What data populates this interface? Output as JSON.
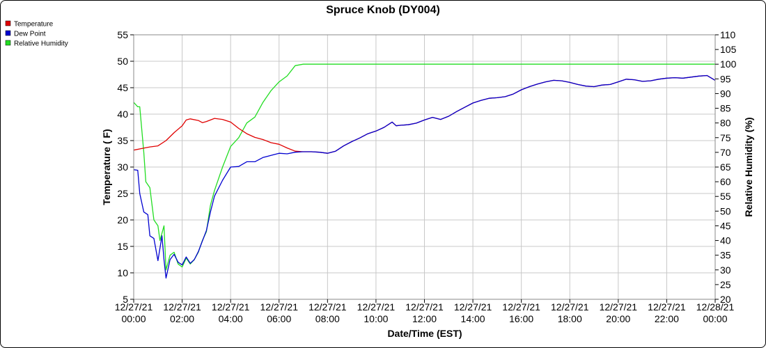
{
  "chart_data": {
    "type": "line",
    "title": "Spruce Knob (DY004)",
    "xlabel": "Date/Time (EST)",
    "ylabel": "Temperature ( F)",
    "y2label": "Relative Humidity (%)",
    "x_range": [
      "12/27/21 00:00",
      "12/28/21 00:00"
    ],
    "ylim": [
      5,
      55
    ],
    "y2lim": [
      20,
      110
    ],
    "grid": true,
    "legend_position": "top-left",
    "x_ticks": [
      {
        "date": "12/27/21",
        "time": "00:00"
      },
      {
        "date": "12/27/21",
        "time": "02:00"
      },
      {
        "date": "12/27/21",
        "time": "04:00"
      },
      {
        "date": "12/27/21",
        "time": "06:00"
      },
      {
        "date": "12/27/21",
        "time": "08:00"
      },
      {
        "date": "12/27/21",
        "time": "10:00"
      },
      {
        "date": "12/27/21",
        "time": "12:00"
      },
      {
        "date": "12/27/21",
        "time": "14:00"
      },
      {
        "date": "12/27/21",
        "time": "16:00"
      },
      {
        "date": "12/27/21",
        "time": "18:00"
      },
      {
        "date": "12/27/21",
        "time": "20:00"
      },
      {
        "date": "12/27/21",
        "time": "22:00"
      },
      {
        "date": "12/28/21",
        "time": "00:00"
      }
    ],
    "y_ticks": [
      "5",
      "10",
      "15",
      "20",
      "25",
      "30",
      "35",
      "40",
      "45",
      "50",
      "55"
    ],
    "y2_ticks": [
      "20",
      "25",
      "30",
      "35",
      "40",
      "45",
      "50",
      "55",
      "60",
      "65",
      "70",
      "75",
      "80",
      "85",
      "90",
      "95",
      "100",
      "105",
      "110"
    ],
    "series": [
      {
        "name": "Temperature",
        "axis": "left",
        "color": "#e00000",
        "points": [
          [
            "12/27/21 00:00",
            33.2
          ],
          [
            "12/27/21 00:20",
            33.5
          ],
          [
            "12/27/21 00:40",
            33.8
          ],
          [
            "12/27/21 01:00",
            34.0
          ],
          [
            "12/27/21 01:20",
            35.0
          ],
          [
            "12/27/21 01:40",
            36.5
          ],
          [
            "12/27/21 02:00",
            37.8
          ],
          [
            "12/27/21 02:10",
            38.9
          ],
          [
            "12/27/21 02:20",
            39.1
          ],
          [
            "12/27/21 02:40",
            38.8
          ],
          [
            "12/27/21 02:50",
            38.4
          ],
          [
            "12/27/21 03:00",
            38.6
          ],
          [
            "12/27/21 03:20",
            39.2
          ],
          [
            "12/27/21 03:40",
            39.0
          ],
          [
            "12/27/21 04:00",
            38.5
          ],
          [
            "12/27/21 04:20",
            37.3
          ],
          [
            "12/27/21 04:40",
            36.3
          ],
          [
            "12/27/21 05:00",
            35.6
          ],
          [
            "12/27/21 05:20",
            35.2
          ],
          [
            "12/27/21 05:40",
            34.6
          ],
          [
            "12/27/21 06:00",
            34.3
          ],
          [
            "12/27/21 06:20",
            33.6
          ],
          [
            "12/27/21 06:40",
            33.0
          ],
          [
            "12/27/21 07:00",
            32.9
          ],
          [
            "12/27/21 07:20",
            32.9
          ],
          [
            "12/27/21 07:40",
            32.8
          ],
          [
            "12/27/21 08:00",
            32.6
          ],
          [
            "12/27/21 08:20",
            33.0
          ],
          [
            "12/27/21 08:40",
            34.0
          ],
          [
            "12/27/21 09:00",
            34.8
          ],
          [
            "12/27/21 09:20",
            35.5
          ],
          [
            "12/27/21 09:40",
            36.3
          ],
          [
            "12/27/21 10:00",
            36.8
          ],
          [
            "12/27/21 10:20",
            37.5
          ],
          [
            "12/27/21 10:40",
            38.5
          ],
          [
            "12/27/21 10:50",
            37.8
          ],
          [
            "12/27/21 11:00",
            37.9
          ],
          [
            "12/27/21 11:20",
            38.0
          ],
          [
            "12/27/21 11:40",
            38.3
          ],
          [
            "12/27/21 12:00",
            38.9
          ],
          [
            "12/27/21 12:20",
            39.4
          ],
          [
            "12/27/21 12:40",
            39.0
          ],
          [
            "12/27/21 13:00",
            39.6
          ],
          [
            "12/27/21 13:20",
            40.5
          ],
          [
            "12/27/21 13:40",
            41.3
          ],
          [
            "12/27/21 14:00",
            42.1
          ],
          [
            "12/27/21 14:20",
            42.6
          ],
          [
            "12/27/21 14:40",
            43.0
          ],
          [
            "12/27/21 15:00",
            43.1
          ],
          [
            "12/27/21 15:20",
            43.3
          ],
          [
            "12/27/21 15:40",
            43.8
          ],
          [
            "12/27/21 16:00",
            44.6
          ],
          [
            "12/27/21 16:20",
            45.2
          ],
          [
            "12/27/21 16:40",
            45.7
          ],
          [
            "12/27/21 17:00",
            46.1
          ],
          [
            "12/27/21 17:20",
            46.4
          ],
          [
            "12/27/21 17:40",
            46.3
          ],
          [
            "12/27/21 18:00",
            46.0
          ],
          [
            "12/27/21 18:20",
            45.6
          ],
          [
            "12/27/21 18:40",
            45.3
          ],
          [
            "12/27/21 19:00",
            45.2
          ],
          [
            "12/27/21 19:20",
            45.5
          ],
          [
            "12/27/21 19:40",
            45.6
          ],
          [
            "12/27/21 20:00",
            46.1
          ],
          [
            "12/27/21 20:20",
            46.6
          ],
          [
            "12/27/21 20:40",
            46.5
          ],
          [
            "12/27/21 21:00",
            46.2
          ],
          [
            "12/27/21 21:20",
            46.3
          ],
          [
            "12/27/21 21:40",
            46.6
          ],
          [
            "12/27/21 22:00",
            46.8
          ],
          [
            "12/27/21 22:20",
            46.9
          ],
          [
            "12/27/21 22:40",
            46.8
          ],
          [
            "12/27/21 23:00",
            47.0
          ],
          [
            "12/27/21 23:20",
            47.2
          ],
          [
            "12/27/21 23:40",
            47.3
          ],
          [
            "12/28/21 00:00",
            46.4
          ]
        ]
      },
      {
        "name": "Dew Point",
        "axis": "left",
        "color": "#0000d0",
        "points": [
          [
            "12/27/21 00:00",
            29.5
          ],
          [
            "12/27/21 00:10",
            29.4
          ],
          [
            "12/27/21 00:15",
            25.0
          ],
          [
            "12/27/21 00:25",
            21.5
          ],
          [
            "12/27/21 00:35",
            21.0
          ],
          [
            "12/27/21 00:40",
            17.0
          ],
          [
            "12/27/21 00:50",
            16.5
          ],
          [
            "12/27/21 01:00",
            12.3
          ],
          [
            "12/27/21 01:10",
            17.0
          ],
          [
            "12/27/21 01:15",
            12.5
          ],
          [
            "12/27/21 01:20",
            9.0
          ],
          [
            "12/27/21 01:30",
            12.5
          ],
          [
            "12/27/21 01:40",
            13.5
          ],
          [
            "12/27/21 01:50",
            12.0
          ],
          [
            "12/27/21 02:00",
            11.5
          ],
          [
            "12/27/21 02:10",
            13.0
          ],
          [
            "12/27/21 02:20",
            11.8
          ],
          [
            "12/27/21 02:30",
            12.5
          ],
          [
            "12/27/21 02:40",
            14.0
          ],
          [
            "12/27/21 02:50",
            16.0
          ],
          [
            "12/27/21 03:00",
            18.0
          ],
          [
            "12/27/21 03:10",
            21.5
          ],
          [
            "12/27/21 03:20",
            24.5
          ],
          [
            "12/27/21 03:40",
            27.5
          ],
          [
            "12/27/21 04:00",
            30.0
          ],
          [
            "12/27/21 04:20",
            30.1
          ],
          [
            "12/27/21 04:40",
            31.0
          ],
          [
            "12/27/21 05:00",
            31.0
          ],
          [
            "12/27/21 05:20",
            31.8
          ],
          [
            "12/27/21 05:40",
            32.2
          ],
          [
            "12/27/21 06:00",
            32.6
          ],
          [
            "12/27/21 06:20",
            32.5
          ],
          [
            "12/27/21 06:40",
            32.8
          ],
          [
            "12/27/21 07:00",
            32.9
          ],
          [
            "12/27/21 07:20",
            32.9
          ],
          [
            "12/27/21 07:40",
            32.8
          ],
          [
            "12/27/21 08:00",
            32.6
          ],
          [
            "12/27/21 08:20",
            33.0
          ],
          [
            "12/27/21 08:40",
            34.0
          ],
          [
            "12/27/21 09:00",
            34.8
          ],
          [
            "12/27/21 09:20",
            35.5
          ],
          [
            "12/27/21 09:40",
            36.3
          ],
          [
            "12/27/21 10:00",
            36.8
          ],
          [
            "12/27/21 10:20",
            37.5
          ],
          [
            "12/27/21 10:40",
            38.5
          ],
          [
            "12/27/21 10:50",
            37.8
          ],
          [
            "12/27/21 11:00",
            37.9
          ],
          [
            "12/27/21 11:20",
            38.0
          ],
          [
            "12/27/21 11:40",
            38.3
          ],
          [
            "12/27/21 12:00",
            38.9
          ],
          [
            "12/27/21 12:20",
            39.4
          ],
          [
            "12/27/21 12:40",
            39.0
          ],
          [
            "12/27/21 13:00",
            39.6
          ],
          [
            "12/27/21 13:20",
            40.5
          ],
          [
            "12/27/21 13:40",
            41.3
          ],
          [
            "12/27/21 14:00",
            42.1
          ],
          [
            "12/27/21 14:20",
            42.6
          ],
          [
            "12/27/21 14:40",
            43.0
          ],
          [
            "12/27/21 15:00",
            43.1
          ],
          [
            "12/27/21 15:20",
            43.3
          ],
          [
            "12/27/21 15:40",
            43.8
          ],
          [
            "12/27/21 16:00",
            44.6
          ],
          [
            "12/27/21 16:20",
            45.2
          ],
          [
            "12/27/21 16:40",
            45.7
          ],
          [
            "12/27/21 17:00",
            46.1
          ],
          [
            "12/27/21 17:20",
            46.4
          ],
          [
            "12/27/21 17:40",
            46.3
          ],
          [
            "12/27/21 18:00",
            46.0
          ],
          [
            "12/27/21 18:20",
            45.6
          ],
          [
            "12/27/21 18:40",
            45.3
          ],
          [
            "12/27/21 19:00",
            45.2
          ],
          [
            "12/27/21 19:20",
            45.5
          ],
          [
            "12/27/21 19:40",
            45.6
          ],
          [
            "12/27/21 20:00",
            46.1
          ],
          [
            "12/27/21 20:20",
            46.6
          ],
          [
            "12/27/21 20:40",
            46.5
          ],
          [
            "12/27/21 21:00",
            46.2
          ],
          [
            "12/27/21 21:20",
            46.3
          ],
          [
            "12/27/21 21:40",
            46.6
          ],
          [
            "12/27/21 22:00",
            46.8
          ],
          [
            "12/27/21 22:20",
            46.9
          ],
          [
            "12/27/21 22:40",
            46.8
          ],
          [
            "12/27/21 23:00",
            47.0
          ],
          [
            "12/27/21 23:20",
            47.2
          ],
          [
            "12/27/21 23:40",
            47.3
          ],
          [
            "12/28/21 00:00",
            46.4
          ]
        ]
      },
      {
        "name": "Relative Humidity",
        "axis": "right",
        "color": "#22dd22",
        "points": [
          [
            "12/27/21 00:00",
            87
          ],
          [
            "12/27/21 00:10",
            85.5
          ],
          [
            "12/27/21 00:15",
            85.5
          ],
          [
            "12/27/21 00:25",
            70
          ],
          [
            "12/27/21 00:30",
            60
          ],
          [
            "12/27/21 00:40",
            58
          ],
          [
            "12/27/21 00:50",
            47
          ],
          [
            "12/27/21 01:00",
            45
          ],
          [
            "12/27/21 01:05",
            40
          ],
          [
            "12/27/21 01:15",
            45
          ],
          [
            "12/27/21 01:20",
            30
          ],
          [
            "12/27/21 01:30",
            35
          ],
          [
            "12/27/21 01:40",
            36
          ],
          [
            "12/27/21 01:50",
            32
          ],
          [
            "12/27/21 02:00",
            31
          ],
          [
            "12/27/21 02:10",
            34
          ],
          [
            "12/27/21 02:20",
            32
          ],
          [
            "12/27/21 02:30",
            33.5
          ],
          [
            "12/27/21 02:40",
            36
          ],
          [
            "12/27/21 02:50",
            40
          ],
          [
            "12/27/21 03:00",
            43
          ],
          [
            "12/27/21 03:10",
            52
          ],
          [
            "12/27/21 03:20",
            57
          ],
          [
            "12/27/21 03:40",
            65
          ],
          [
            "12/27/21 04:00",
            72
          ],
          [
            "12/27/21 04:20",
            75
          ],
          [
            "12/27/21 04:40",
            80
          ],
          [
            "12/27/21 05:00",
            82
          ],
          [
            "12/27/21 05:20",
            87
          ],
          [
            "12/27/21 05:40",
            91
          ],
          [
            "12/27/21 06:00",
            94
          ],
          [
            "12/27/21 06:20",
            96
          ],
          [
            "12/27/21 06:40",
            99.5
          ],
          [
            "12/27/21 07:00",
            100
          ],
          [
            "12/28/21 00:00",
            100
          ]
        ]
      }
    ]
  }
}
